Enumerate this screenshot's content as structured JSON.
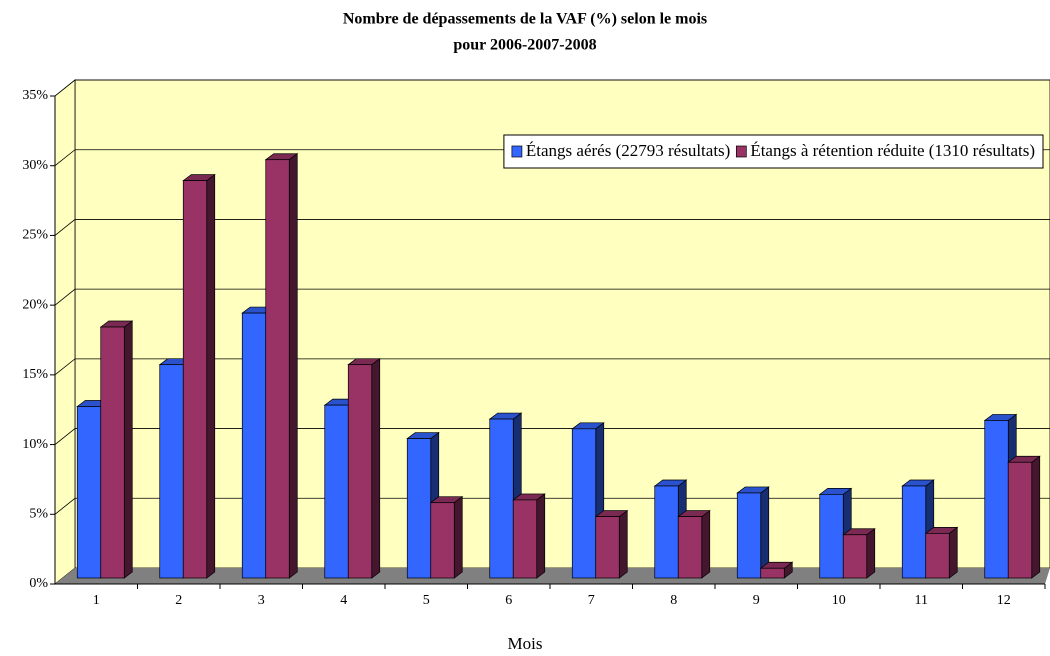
{
  "chart_data": {
    "type": "bar",
    "title": [
      "Nombre de dépassements de la VAF (%) selon le mois",
      "pour 2006-2007-2008"
    ],
    "x_label": "Mois",
    "categories": [
      "1",
      "2",
      "3",
      "4",
      "5",
      "6",
      "7",
      "8",
      "9",
      "10",
      "11",
      "12"
    ],
    "series": [
      {
        "name": "Étangs aérés (22793 résultats)",
        "color": "#3366ff",
        "values": [
          12.3,
          15.3,
          19,
          12.4,
          10,
          11.4,
          10.7,
          6.6,
          6.1,
          6,
          6.6,
          11.3
        ]
      },
      {
        "name": "Étangs à rétention réduite (1310 résultats)",
        "color": "#993366",
        "values": [
          18,
          28.5,
          30,
          15.3,
          5.4,
          5.6,
          4.4,
          4.4,
          0.7,
          3.1,
          3.2,
          8.3
        ]
      }
    ],
    "ylim": [
      0,
      35
    ],
    "yticks": [
      {
        "value": 0,
        "label": "0%"
      },
      {
        "value": 5,
        "label": "5%"
      },
      {
        "value": 10,
        "label": "10%"
      },
      {
        "value": 15,
        "label": "15%"
      },
      {
        "value": 20,
        "label": "20%"
      },
      {
        "value": 25,
        "label": "25%"
      },
      {
        "value": 30,
        "label": "30%"
      },
      {
        "value": 35,
        "label": "35%"
      }
    ],
    "grid": true,
    "legend": "top-right"
  }
}
